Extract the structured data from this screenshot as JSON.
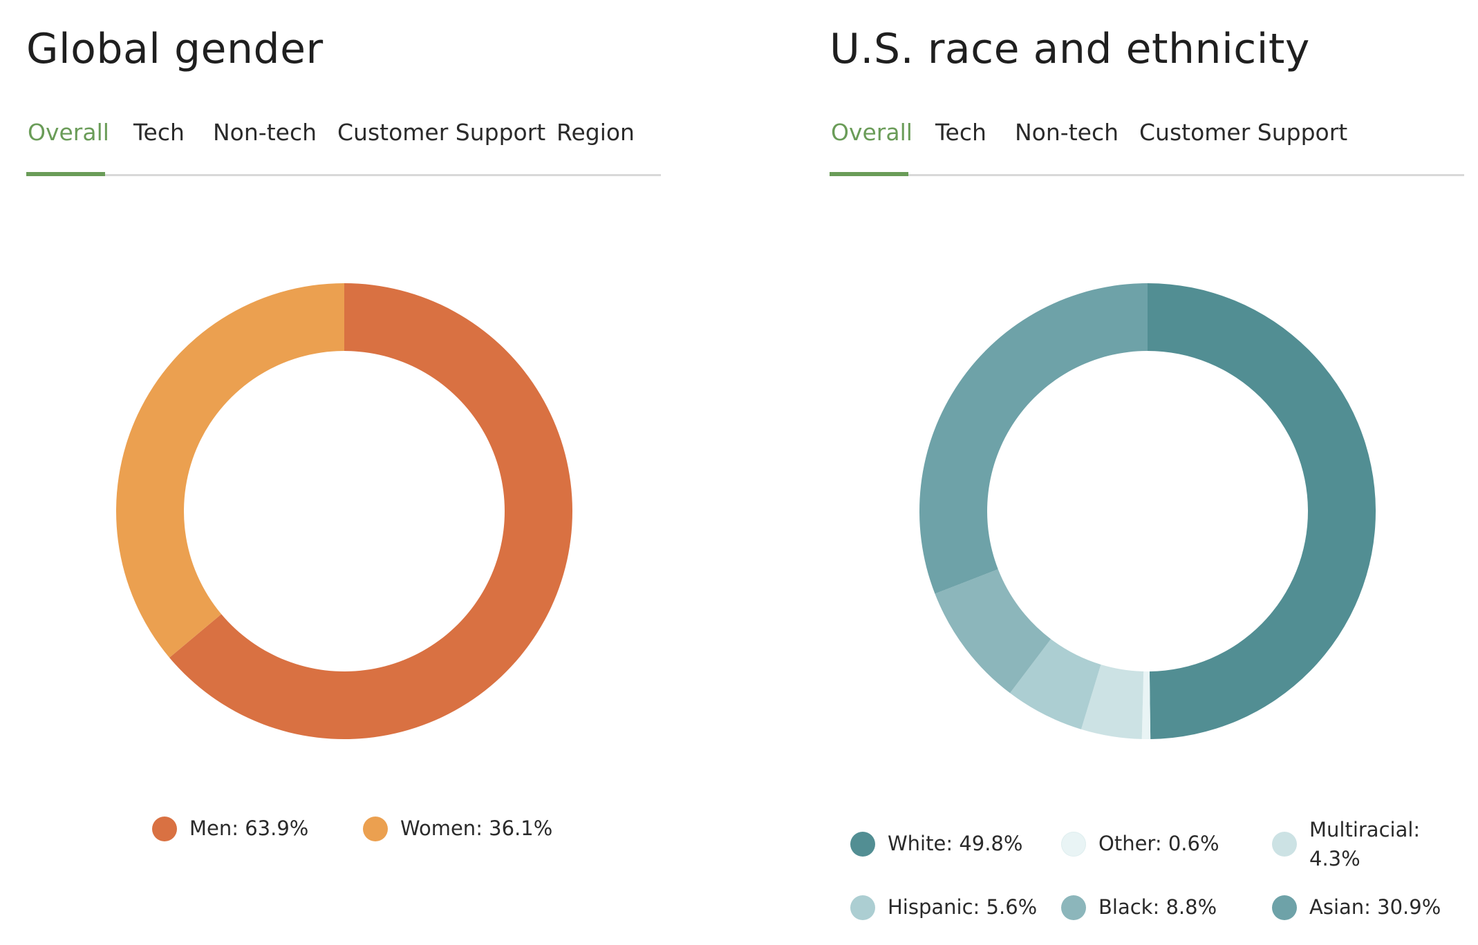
{
  "gender": {
    "title": "Global gender",
    "tabs": [
      {
        "label": "Overall",
        "active": true
      },
      {
        "label": "Tech",
        "active": false
      },
      {
        "label": "Non-tech",
        "active": false
      },
      {
        "label": "Customer Support",
        "active": false
      },
      {
        "label": "Region",
        "active": false
      }
    ],
    "legend": [
      {
        "label": "Men: 63.9%",
        "color": "#d97142"
      },
      {
        "label": "Women: 36.1%",
        "color": "#eba050"
      }
    ]
  },
  "race": {
    "title": "U.S. race and ethnicity",
    "tabs": [
      {
        "label": "Overall",
        "active": true
      },
      {
        "label": "Tech",
        "active": false
      },
      {
        "label": "Non-tech",
        "active": false
      },
      {
        "label": "Customer Support",
        "active": false
      }
    ],
    "legend": [
      {
        "label": "White: 49.8%",
        "color": "#528e93"
      },
      {
        "label": "Other: 0.6%",
        "color": "#e9f4f5"
      },
      {
        "label": "Multiracial: 4.3%",
        "color": "#cce2e4"
      },
      {
        "label": "Hispanic: 5.6%",
        "color": "#acced2"
      },
      {
        "label": "Black: 8.8%",
        "color": "#8cb6bb"
      },
      {
        "label": "Asian: 30.9%",
        "color": "#6ea2a8"
      }
    ]
  },
  "chart_data": [
    {
      "type": "pie",
      "donut": true,
      "categories": [
        "Men",
        "Women"
      ],
      "values": [
        63.9,
        36.1
      ],
      "colors": [
        "#d97142",
        "#eba050"
      ]
    },
    {
      "type": "pie",
      "donut": true,
      "categories": [
        "White",
        "Other",
        "Multiracial",
        "Hispanic",
        "Black",
        "Asian"
      ],
      "values": [
        49.8,
        0.6,
        4.3,
        5.6,
        8.8,
        30.9
      ],
      "colors": [
        "#528e93",
        "#e9f4f5",
        "#cce2e4",
        "#acced2",
        "#8cb6bb",
        "#6ea2a8"
      ]
    }
  ]
}
